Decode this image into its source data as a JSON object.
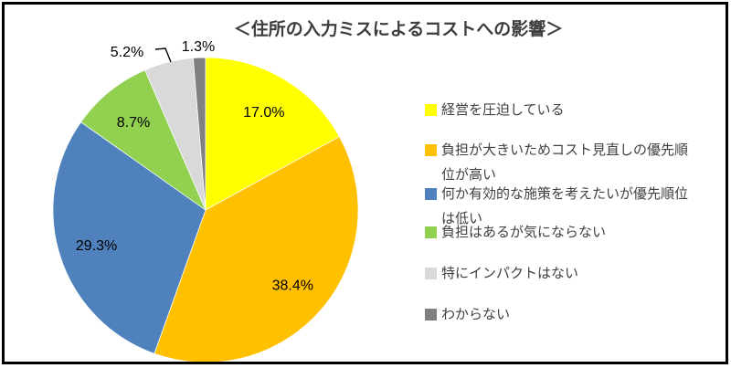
{
  "chart_data": {
    "type": "pie",
    "title": "＜住所の入力ミスによるコストへの影響＞",
    "legend_position": "right",
    "start_angle_deg": 0,
    "direction": "clockwise",
    "grid": false,
    "background_color": "#ffffff",
    "frame_border_color": "#000000",
    "slices": [
      {
        "label": "経営を圧迫している",
        "value": 17.0,
        "display": "17.0%",
        "color": "#FFFF00",
        "label_placement": "inside"
      },
      {
        "label": "負担が大きいためコスト見直しの優先順位が高い",
        "value": 38.4,
        "display": "38.4%",
        "color": "#FFC000",
        "label_placement": "inside"
      },
      {
        "label": "何か有効的な施策を考えたいが優先順位は低い",
        "value": 29.3,
        "display": "29.3%",
        "color": "#4F81BD",
        "label_placement": "inside"
      },
      {
        "label": "負担はあるが気にならない",
        "value": 8.7,
        "display": "8.7%",
        "color": "#92D050",
        "label_placement": "inside"
      },
      {
        "label": "特にインパクトはない",
        "value": 5.2,
        "display": "5.2%",
        "color": "#D9D9D9",
        "label_placement": "outside-with-leader"
      },
      {
        "label": "わからない",
        "value": 1.3,
        "display": "1.3%",
        "color": "#808080",
        "label_placement": "outside"
      }
    ],
    "legend": {
      "items": [
        {
          "color": "#FFFF00",
          "lines": [
            "経営を圧迫している"
          ]
        },
        {
          "color": "#FFC000",
          "lines": [
            "負担が大きいためコスト見直しの優先順",
            "位が高い"
          ]
        },
        {
          "color": "#4F81BD",
          "lines": [
            "何か有効的な施策を考えたいが優先順位",
            "は低い"
          ]
        },
        {
          "color": "#92D050",
          "lines": [
            "負担はあるが気にならない"
          ]
        },
        {
          "color": "#D9D9D9",
          "lines": [
            "特にインパクトはない"
          ]
        },
        {
          "color": "#808080",
          "lines": [
            "わからない"
          ]
        }
      ]
    }
  }
}
